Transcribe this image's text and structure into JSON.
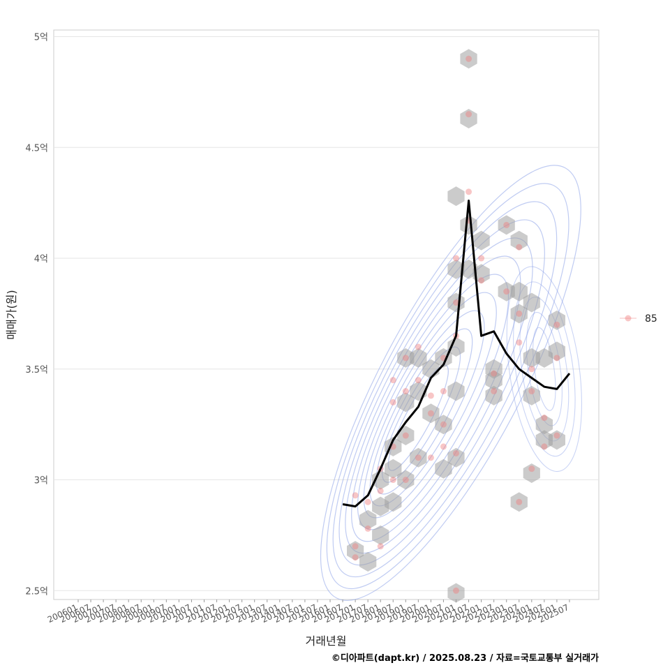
{
  "chart_data": {
    "type": "scatter",
    "title": "",
    "xlabel": "거래년월",
    "ylabel": "매매가(원)",
    "caption": "©디아파트(dapt.kr) / 2025.08.23 / 자료=국토교통부 실거래가",
    "legend": {
      "placement": "right",
      "entries": [
        {
          "label": "85",
          "color": "#f08080"
        }
      ]
    },
    "x_ticks": [
      "200601",
      "200607",
      "200701",
      "200707",
      "200801",
      "200807",
      "200901",
      "200907",
      "201001",
      "201007",
      "201101",
      "201107",
      "201201",
      "201207",
      "201301",
      "201307",
      "201401",
      "201407",
      "201501",
      "201507",
      "201601",
      "201607",
      "201701",
      "201707",
      "201801",
      "201807",
      "201901",
      "201907",
      "202001",
      "202007",
      "202101",
      "202107",
      "202201",
      "202207",
      "202301",
      "202307",
      "202401",
      "202407",
      "202501",
      "202507"
    ],
    "y_ticks": [
      "2.5억",
      "3억",
      "3.5억",
      "4억",
      "4.5억",
      "5억"
    ],
    "y_unit": "억",
    "ylim": [
      2.46,
      5.03
    ],
    "grid": "horizontal",
    "colors": {
      "points": "#f08080",
      "hex": "#a0a0a0",
      "contour": "#8aa0e8",
      "trend": "#000000"
    },
    "hexbins": [
      {
        "x": "201701",
        "y": 2.68
      },
      {
        "x": "201707",
        "y": 2.63
      },
      {
        "x": "201801",
        "y": 2.75
      },
      {
        "x": "201707",
        "y": 2.82
      },
      {
        "x": "201801",
        "y": 2.88
      },
      {
        "x": "201807",
        "y": 2.9
      },
      {
        "x": "201801",
        "y": 3.0
      },
      {
        "x": "201807",
        "y": 3.05
      },
      {
        "x": "201901",
        "y": 3.0
      },
      {
        "x": "201807",
        "y": 3.15
      },
      {
        "x": "201901",
        "y": 3.2
      },
      {
        "x": "201907",
        "y": 3.1
      },
      {
        "x": "201901",
        "y": 3.35
      },
      {
        "x": "201907",
        "y": 3.4
      },
      {
        "x": "201901",
        "y": 3.55
      },
      {
        "x": "201907",
        "y": 3.55
      },
      {
        "x": "202001",
        "y": 3.5
      },
      {
        "x": "202007",
        "y": 3.55
      },
      {
        "x": "202001",
        "y": 3.3
      },
      {
        "x": "202007",
        "y": 3.25
      },
      {
        "x": "202007",
        "y": 3.05
      },
      {
        "x": "202101",
        "y": 3.1
      },
      {
        "x": "202101",
        "y": 3.4
      },
      {
        "x": "202101",
        "y": 3.6
      },
      {
        "x": "202101",
        "y": 3.8
      },
      {
        "x": "202101",
        "y": 3.95
      },
      {
        "x": "202107",
        "y": 3.95
      },
      {
        "x": "202107",
        "y": 4.15
      },
      {
        "x": "202101",
        "y": 4.28
      },
      {
        "x": "202201",
        "y": 4.08
      },
      {
        "x": "202201",
        "y": 3.93
      },
      {
        "x": "202207",
        "y": 3.5
      },
      {
        "x": "202207",
        "y": 3.45
      },
      {
        "x": "202207",
        "y": 3.38
      },
      {
        "x": "202301",
        "y": 3.85
      },
      {
        "x": "202301",
        "y": 4.15
      },
      {
        "x": "202307",
        "y": 4.08
      },
      {
        "x": "202307",
        "y": 3.85
      },
      {
        "x": "202307",
        "y": 3.75
      },
      {
        "x": "202401",
        "y": 3.8
      },
      {
        "x": "202401",
        "y": 3.55
      },
      {
        "x": "202401",
        "y": 3.38
      },
      {
        "x": "202407",
        "y": 3.55
      },
      {
        "x": "202407",
        "y": 3.25
      },
      {
        "x": "202407",
        "y": 3.18
      },
      {
        "x": "202501",
        "y": 3.18
      },
      {
        "x": "202501",
        "y": 3.58
      },
      {
        "x": "202501",
        "y": 3.72
      },
      {
        "x": "202401",
        "y": 3.03
      },
      {
        "x": "202307",
        "y": 2.9
      },
      {
        "x": "202101",
        "y": 2.49
      },
      {
        "x": "202107",
        "y": 4.63
      },
      {
        "x": "202107",
        "y": 4.9
      }
    ],
    "points": [
      {
        "x": "201701",
        "y": 2.7
      },
      {
        "x": "201701",
        "y": 2.93
      },
      {
        "x": "201701",
        "y": 2.65
      },
      {
        "x": "201707",
        "y": 2.78
      },
      {
        "x": "201707",
        "y": 2.9
      },
      {
        "x": "201801",
        "y": 2.7
      },
      {
        "x": "201801",
        "y": 2.95
      },
      {
        "x": "201801",
        "y": 3.05
      },
      {
        "x": "201807",
        "y": 3.0
      },
      {
        "x": "201807",
        "y": 3.15
      },
      {
        "x": "201807",
        "y": 3.35
      },
      {
        "x": "201807",
        "y": 3.45
      },
      {
        "x": "201901",
        "y": 3.2
      },
      {
        "x": "201901",
        "y": 3.4
      },
      {
        "x": "201901",
        "y": 3.55
      },
      {
        "x": "201901",
        "y": 3.0
      },
      {
        "x": "201907",
        "y": 3.1
      },
      {
        "x": "201907",
        "y": 3.45
      },
      {
        "x": "201907",
        "y": 3.6
      },
      {
        "x": "202001",
        "y": 3.38
      },
      {
        "x": "202001",
        "y": 3.3
      },
      {
        "x": "202001",
        "y": 3.1
      },
      {
        "x": "202007",
        "y": 3.55
      },
      {
        "x": "202007",
        "y": 3.15
      },
      {
        "x": "202007",
        "y": 3.25
      },
      {
        "x": "202007",
        "y": 3.4
      },
      {
        "x": "202101",
        "y": 3.65
      },
      {
        "x": "202101",
        "y": 3.8
      },
      {
        "x": "202101",
        "y": 4.0
      },
      {
        "x": "202101",
        "y": 3.12
      },
      {
        "x": "202101",
        "y": 2.5
      },
      {
        "x": "202107",
        "y": 4.17
      },
      {
        "x": "202107",
        "y": 4.3
      },
      {
        "x": "202107",
        "y": 4.65
      },
      {
        "x": "202107",
        "y": 4.9
      },
      {
        "x": "202201",
        "y": 4.0
      },
      {
        "x": "202201",
        "y": 3.9
      },
      {
        "x": "202207",
        "y": 3.48
      },
      {
        "x": "202207",
        "y": 3.4
      },
      {
        "x": "202301",
        "y": 3.85
      },
      {
        "x": "202301",
        "y": 4.15
      },
      {
        "x": "202307",
        "y": 4.05
      },
      {
        "x": "202307",
        "y": 3.75
      },
      {
        "x": "202307",
        "y": 3.62
      },
      {
        "x": "202401",
        "y": 3.5
      },
      {
        "x": "202401",
        "y": 3.4
      },
      {
        "x": "202401",
        "y": 3.05
      },
      {
        "x": "202307",
        "y": 2.9
      },
      {
        "x": "202407",
        "y": 3.28
      },
      {
        "x": "202407",
        "y": 3.15
      },
      {
        "x": "202501",
        "y": 3.2
      },
      {
        "x": "202501",
        "y": 3.55
      },
      {
        "x": "202501",
        "y": 3.7
      }
    ],
    "trend": [
      {
        "x": "201607",
        "y": 2.89
      },
      {
        "x": "201701",
        "y": 2.88
      },
      {
        "x": "201707",
        "y": 2.93
      },
      {
        "x": "201801",
        "y": 3.05
      },
      {
        "x": "201807",
        "y": 3.18
      },
      {
        "x": "201901",
        "y": 3.26
      },
      {
        "x": "201907",
        "y": 3.33
      },
      {
        "x": "202001",
        "y": 3.46
      },
      {
        "x": "202007",
        "y": 3.52
      },
      {
        "x": "202101",
        "y": 3.65
      },
      {
        "x": "202107",
        "y": 4.26
      },
      {
        "x": "202201",
        "y": 3.65
      },
      {
        "x": "202207",
        "y": 3.67
      },
      {
        "x": "202301",
        "y": 3.57
      },
      {
        "x": "202307",
        "y": 3.5
      },
      {
        "x": "202401",
        "y": 3.46
      },
      {
        "x": "202407",
        "y": 3.42
      },
      {
        "x": "202501",
        "y": 3.41
      },
      {
        "x": "202507",
        "y": 3.48
      }
    ]
  }
}
